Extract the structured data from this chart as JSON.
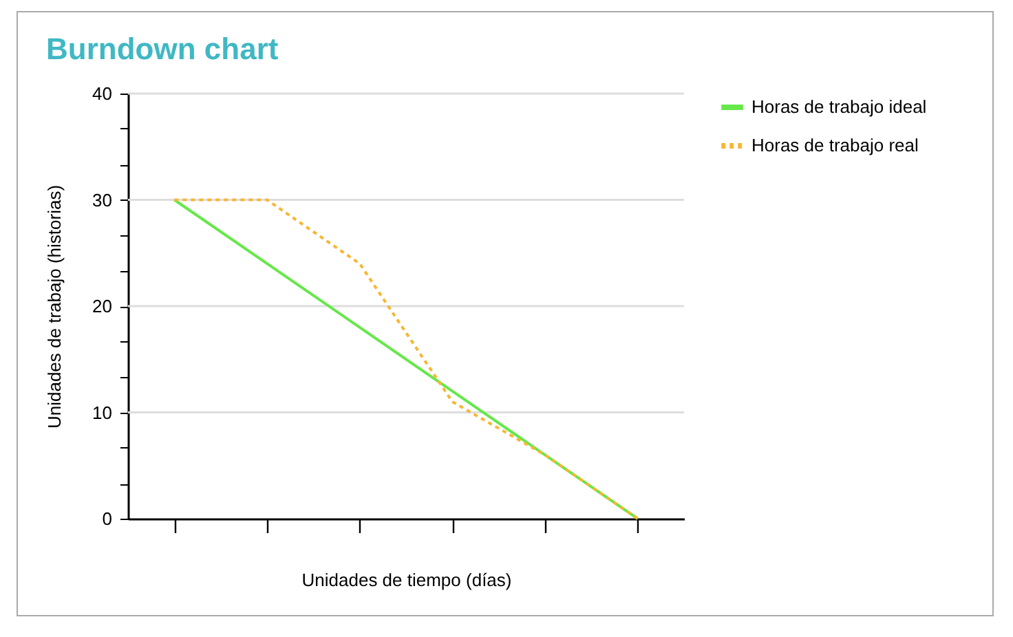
{
  "chart_data": {
    "type": "line",
    "title": "Burndown chart",
    "xlabel": "Unidades de tiempo (días)",
    "ylabel": "Unidades de trabajo (historias)",
    "categories": [
      null,
      null,
      null,
      null,
      null,
      null
    ],
    "series": [
      {
        "name": "Horas de trabajo ideal",
        "color": "#66e84a",
        "line_style": "solid",
        "values": [
          30,
          24,
          18,
          12,
          6,
          0
        ]
      },
      {
        "name": "Horas de trabajo real",
        "color": "#f7b733",
        "line_style": "dotted",
        "values": [
          30,
          30,
          24,
          11,
          6,
          0
        ]
      }
    ],
    "ylim": [
      0,
      40
    ],
    "yticks": [
      0,
      {
        "value": 3.3,
        "label": null
      },
      {
        "value": 6.7,
        "label": null
      },
      10,
      {
        "value": 13.3,
        "label": null
      },
      {
        "value": 16.7,
        "label": null
      },
      20,
      {
        "value": 23.3,
        "label": null
      },
      {
        "value": 26.7,
        "label": null
      },
      30,
      {
        "value": 33.3,
        "label": null
      },
      {
        "value": 36.7,
        "label": null
      },
      40
    ],
    "grid": "y",
    "legend": "top right",
    "tick_labels": "y"
  }
}
